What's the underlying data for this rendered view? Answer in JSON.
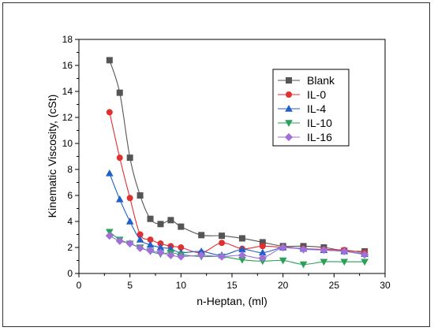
{
  "chart_data": {
    "type": "line",
    "xlabel": "n-Heptan, (ml)",
    "ylabel": "Kinematic Viscosity, (cSt)",
    "xlim": [
      0,
      30
    ],
    "ylim": [
      0,
      18
    ],
    "xticks": [
      0,
      5,
      10,
      15,
      20,
      25,
      30
    ],
    "yticks": [
      0,
      2,
      4,
      6,
      8,
      10,
      12,
      14,
      16,
      18
    ],
    "grid": false,
    "legend_position": "top-right",
    "series": [
      {
        "name": "Blank",
        "color": "#555555",
        "marker": "square",
        "points": [
          [
            3,
            16.4
          ],
          [
            4,
            13.9
          ],
          [
            5,
            8.9
          ],
          [
            6,
            6.0
          ],
          [
            7,
            4.2
          ],
          [
            8,
            3.8
          ],
          [
            9,
            4.1
          ],
          [
            10,
            3.6
          ],
          [
            12,
            2.95
          ],
          [
            14,
            2.9
          ],
          [
            16,
            2.7
          ],
          [
            18,
            2.4
          ],
          [
            20,
            2.1
          ],
          [
            22,
            2.1
          ],
          [
            24,
            2.0
          ],
          [
            26,
            1.75
          ],
          [
            28,
            1.7
          ]
        ]
      },
      {
        "name": "IL-0",
        "color": "#e03030",
        "marker": "circle",
        "points": [
          [
            3,
            12.4
          ],
          [
            4,
            8.9
          ],
          [
            5,
            5.8
          ],
          [
            6,
            3.0
          ],
          [
            7,
            2.6
          ],
          [
            8,
            2.3
          ],
          [
            9,
            2.1
          ],
          [
            10,
            2.0
          ],
          [
            12,
            1.6
          ],
          [
            14,
            2.35
          ],
          [
            16,
            1.9
          ],
          [
            18,
            2.1
          ],
          [
            20,
            2.0
          ],
          [
            22,
            1.9
          ],
          [
            24,
            1.85
          ],
          [
            26,
            1.8
          ],
          [
            28,
            1.6
          ]
        ]
      },
      {
        "name": "IL-4",
        "color": "#2060c8",
        "marker": "triangle-up",
        "points": [
          [
            3,
            7.7
          ],
          [
            4,
            5.7
          ],
          [
            5,
            4.0
          ],
          [
            6,
            2.6
          ],
          [
            7,
            2.2
          ],
          [
            8,
            2.0
          ],
          [
            9,
            1.9
          ],
          [
            10,
            1.6
          ],
          [
            12,
            1.7
          ],
          [
            14,
            1.4
          ],
          [
            16,
            1.85
          ],
          [
            18,
            1.6
          ],
          [
            20,
            2.0
          ],
          [
            22,
            1.9
          ],
          [
            24,
            1.8
          ],
          [
            26,
            1.7
          ],
          [
            28,
            1.5
          ]
        ]
      },
      {
        "name": "IL-10",
        "color": "#2aa05a",
        "marker": "triangle-down",
        "points": [
          [
            3,
            3.2
          ],
          [
            4,
            2.6
          ],
          [
            5,
            2.3
          ],
          [
            6,
            2.0
          ],
          [
            7,
            1.7
          ],
          [
            8,
            1.5
          ],
          [
            9,
            1.6
          ],
          [
            10,
            1.45
          ],
          [
            12,
            1.3
          ],
          [
            14,
            1.3
          ],
          [
            16,
            1.05
          ],
          [
            18,
            0.95
          ],
          [
            20,
            1.0
          ],
          [
            22,
            0.7
          ],
          [
            24,
            0.9
          ],
          [
            26,
            0.9
          ],
          [
            28,
            0.9
          ]
        ]
      },
      {
        "name": "IL-16",
        "color": "#a070d8",
        "marker": "diamond",
        "points": [
          [
            3,
            2.9
          ],
          [
            4,
            2.5
          ],
          [
            5,
            2.3
          ],
          [
            6,
            1.95
          ],
          [
            7,
            1.75
          ],
          [
            8,
            1.6
          ],
          [
            9,
            1.4
          ],
          [
            10,
            1.3
          ],
          [
            12,
            1.4
          ],
          [
            14,
            1.3
          ],
          [
            16,
            1.4
          ],
          [
            18,
            1.2
          ],
          [
            20,
            2.0
          ],
          [
            22,
            1.85
          ],
          [
            24,
            1.8
          ],
          [
            26,
            1.7
          ],
          [
            28,
            1.45
          ]
        ]
      }
    ]
  }
}
